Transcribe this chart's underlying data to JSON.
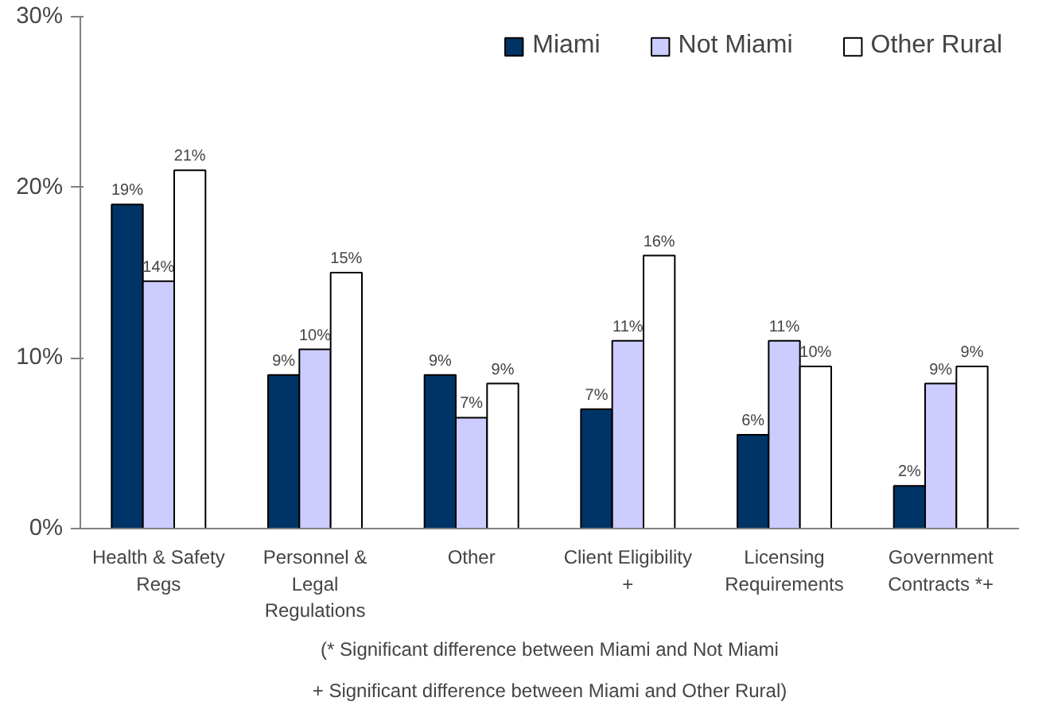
{
  "chart_data": {
    "type": "bar",
    "categories": [
      "Health & Safety\nRegs",
      "Personnel &\nLegal\nRegulations",
      "Other",
      "Client Eligibility\n+",
      "Licensing\nRequirements",
      "Government\nContracts *+"
    ],
    "series": [
      {
        "name": "Miami",
        "color": "#003366",
        "values": [
          19,
          9,
          9,
          7,
          5.5,
          2.5
        ],
        "value_labels": [
          "19%",
          "9%",
          "9%",
          "7%",
          "6%",
          "2%"
        ]
      },
      {
        "name": "Not Miami",
        "color": "#ccccff",
        "values": [
          14.5,
          10.5,
          6.5,
          11,
          11,
          8.5
        ],
        "value_labels": [
          "14%",
          "10%",
          "7%",
          "11%",
          "11%",
          "9%"
        ]
      },
      {
        "name": "Other Rural",
        "color": "#ffffff",
        "values": [
          21,
          15,
          8.5,
          16,
          9.5,
          9.5
        ],
        "value_labels": [
          "21%",
          "15%",
          "9%",
          "16%",
          "10%",
          "9%"
        ]
      }
    ],
    "ylim": [
      0,
      30
    ],
    "yticks": [
      {
        "value": 0,
        "label": "0%"
      },
      {
        "value": 10,
        "label": "10%"
      },
      {
        "value": 20,
        "label": "20%"
      },
      {
        "value": 30,
        "label": "30%"
      }
    ],
    "legend": "top right",
    "grid": false,
    "annotations": [
      "(* Significant difference between Miami and Not Miami",
      "+ Significant difference between Miami and Other Rural)"
    ]
  }
}
